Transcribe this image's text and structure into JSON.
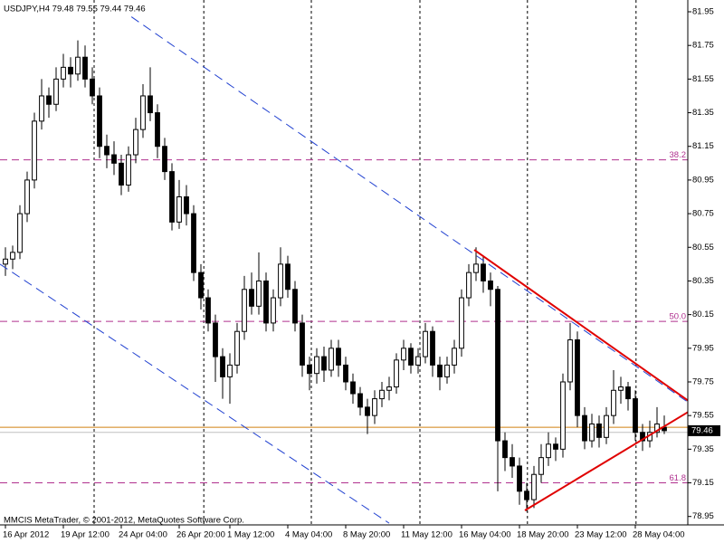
{
  "chart_data": {
    "type": "candlestick",
    "title": "USDJPY,H4  79.48 79.55 79.44 79.46",
    "footer": "MMCIS MetaTrader, © 2001-2012, MetaQuotes Software Corp.",
    "bull_color": "#ffffff",
    "bear_color": "#000000",
    "outline_color": "#000000",
    "xlim": [
      -0.75,
      94.25
    ],
    "ylim": [
      78.9,
      82.02
    ],
    "yticks": [
      81.95,
      81.75,
      81.55,
      81.35,
      81.15,
      80.95,
      80.75,
      80.55,
      80.35,
      80.15,
      79.95,
      79.75,
      79.55,
      79.35,
      79.15,
      78.95
    ],
    "xticks": [
      {
        "value": 0,
        "label": "16 Apr 2012"
      },
      {
        "value": 8,
        "label": "19 Apr 12:00"
      },
      {
        "value": 16,
        "label": "24 Apr 04:00"
      },
      {
        "value": 24,
        "label": "26 Apr 20:00"
      },
      {
        "value": 31,
        "label": "1 May 12:00"
      },
      {
        "value": 39,
        "label": "4 May 04:00"
      },
      {
        "value": 47,
        "label": "8 May 20:00"
      },
      {
        "value": 55,
        "label": "11 May 12:00"
      },
      {
        "value": 63,
        "label": "16 May 04:00"
      },
      {
        "value": 71,
        "label": "18 May 20:00"
      },
      {
        "value": 79,
        "label": "23 May 12:00"
      },
      {
        "value": 87,
        "label": "28 May 04:00"
      }
    ],
    "xgrid": [
      12.25,
      27.4,
      42.25,
      57.25,
      72.1,
      87.1
    ],
    "grid_color": "#000000",
    "open": [
      80.45,
      80.48,
      80.52,
      80.75,
      80.95,
      81.3,
      81.45,
      81.4,
      81.55,
      81.62,
      81.58,
      81.68,
      81.55,
      81.45,
      81.15,
      81.1,
      81.05,
      80.92,
      81.1,
      81.25,
      81.45,
      81.35,
      81.15,
      81.0,
      80.7,
      80.85,
      80.75,
      80.4,
      80.25,
      80.1,
      79.9,
      79.78,
      79.85,
      80.05,
      80.3,
      80.2,
      80.35,
      80.1,
      80.25,
      80.45,
      80.3,
      80.1,
      79.85,
      79.8,
      79.9,
      79.82,
      79.95,
      79.85,
      79.75,
      79.68,
      79.6,
      79.55,
      79.65,
      79.7,
      79.72,
      79.88,
      79.95,
      79.85,
      79.9,
      80.05,
      79.85,
      79.78,
      79.85,
      79.95,
      80.25,
      80.4,
      80.45,
      80.35,
      80.3,
      79.4,
      79.3,
      79.25,
      79.1,
      79.05,
      79.2,
      79.3,
      79.38,
      79.35,
      79.75,
      80.0,
      79.55,
      79.4,
      79.5,
      79.42,
      79.55,
      79.7,
      79.72,
      79.65,
      79.45,
      79.4,
      79.45,
      79.48
    ],
    "high": [
      80.55,
      80.56,
      80.8,
      81.0,
      81.35,
      81.55,
      81.5,
      81.62,
      81.7,
      81.68,
      81.78,
      81.75,
      81.62,
      81.5,
      81.22,
      81.18,
      81.1,
      81.15,
      81.32,
      81.52,
      81.62,
      81.4,
      81.2,
      81.05,
      80.95,
      80.92,
      80.8,
      80.45,
      80.3,
      80.15,
      79.95,
      79.92,
      80.1,
      80.38,
      80.4,
      80.52,
      80.4,
      80.3,
      80.55,
      80.5,
      80.35,
      80.15,
      79.9,
      79.95,
      79.96,
      80.0,
      80.0,
      79.9,
      79.8,
      79.72,
      79.65,
      79.7,
      79.75,
      79.78,
      79.92,
      80.0,
      79.98,
      79.95,
      80.1,
      80.08,
      79.9,
      79.9,
      80.0,
      80.3,
      80.45,
      80.55,
      80.5,
      80.4,
      80.32,
      79.45,
      79.38,
      79.3,
      79.15,
      79.25,
      79.38,
      79.45,
      79.42,
      79.8,
      80.1,
      80.05,
      79.6,
      79.56,
      79.55,
      79.6,
      79.82,
      79.78,
      79.75,
      79.7,
      79.5,
      79.52,
      79.6,
      79.55
    ],
    "low": [
      80.38,
      80.42,
      80.48,
      80.7,
      80.9,
      81.25,
      81.32,
      81.36,
      81.5,
      81.5,
      81.54,
      81.5,
      81.4,
      81.08,
      81.02,
      80.98,
      80.86,
      80.88,
      81.05,
      81.2,
      81.3,
      81.08,
      80.95,
      80.65,
      80.66,
      80.68,
      80.35,
      80.18,
      80.05,
      79.75,
      79.65,
      79.62,
      79.8,
      80.0,
      80.15,
      80.15,
      80.05,
      80.05,
      80.2,
      80.25,
      80.05,
      79.78,
      79.7,
      79.74,
      79.75,
      79.78,
      79.78,
      79.7,
      79.62,
      79.55,
      79.44,
      79.5,
      79.6,
      79.64,
      79.68,
      79.82,
      79.8,
      79.8,
      79.86,
      79.78,
      79.7,
      79.74,
      79.8,
      79.9,
      80.2,
      80.35,
      80.28,
      80.2,
      79.1,
      79.22,
      79.18,
      79.02,
      78.98,
      79.0,
      79.15,
      79.25,
      79.28,
      79.3,
      79.7,
      79.48,
      79.35,
      79.36,
      79.36,
      79.38,
      79.5,
      79.62,
      79.58,
      79.4,
      79.34,
      79.36,
      79.42,
      79.44
    ],
    "close": [
      80.48,
      80.52,
      80.75,
      80.95,
      81.3,
      81.45,
      81.4,
      81.55,
      81.62,
      81.58,
      81.68,
      81.55,
      81.45,
      81.15,
      81.1,
      81.05,
      80.92,
      81.1,
      81.25,
      81.45,
      81.35,
      81.15,
      81.0,
      80.7,
      80.85,
      80.75,
      80.4,
      80.25,
      80.1,
      79.9,
      79.78,
      79.85,
      80.05,
      80.3,
      80.2,
      80.35,
      80.1,
      80.25,
      80.45,
      80.3,
      80.1,
      79.85,
      79.8,
      79.9,
      79.82,
      79.95,
      79.85,
      79.75,
      79.68,
      79.6,
      79.55,
      79.65,
      79.7,
      79.72,
      79.88,
      79.95,
      79.85,
      79.9,
      80.05,
      79.85,
      79.78,
      79.85,
      79.95,
      80.25,
      80.4,
      80.45,
      80.35,
      80.3,
      79.4,
      79.3,
      79.25,
      79.1,
      79.05,
      79.2,
      79.3,
      79.38,
      79.35,
      79.75,
      80.0,
      79.55,
      79.4,
      79.5,
      79.42,
      79.55,
      79.7,
      79.72,
      79.65,
      79.45,
      79.4,
      79.45,
      79.5,
      79.46
    ],
    "levels": [
      {
        "value": 81.07,
        "label": "38.2"
      },
      {
        "value": 80.11,
        "label": "50.0"
      },
      {
        "value": 79.15,
        "label": "61.8"
      }
    ],
    "level_color": "#b0308f",
    "hlines": [
      {
        "value": 79.48,
        "color": "#d08010"
      },
      {
        "value": 79.45,
        "color": "#c0c0c0"
      }
    ],
    "last_price": 79.46,
    "trendlines": [
      {
        "points": [
          [
            17.4,
            81.92
          ],
          [
            94.25,
            79.63
          ]
        ],
        "color": "#2040d0",
        "dashed": true,
        "width": 1
      },
      {
        "points": [
          [
            -0.75,
            80.45
          ],
          [
            53.0,
            78.91
          ]
        ],
        "color": "#2040d0",
        "dashed": true,
        "width": 1
      },
      {
        "points": [
          [
            64.75,
            80.535
          ],
          [
            94.25,
            79.64
          ]
        ],
        "color": "#e00000",
        "dashed": false,
        "width": 2
      },
      {
        "points": [
          [
            71.75,
            78.986
          ],
          [
            94.25,
            79.57
          ]
        ],
        "color": "#e00000",
        "dashed": false,
        "width": 2
      }
    ]
  }
}
